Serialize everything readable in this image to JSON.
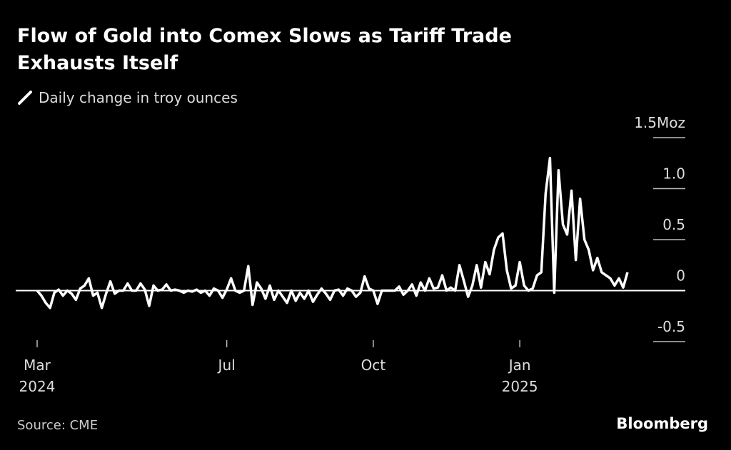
{
  "chart_data": {
    "type": "line",
    "title": "Flow of Gold into Comex Slows as Tariff Trade Exhausts Itself",
    "series": [
      {
        "name": "Daily change in troy ounces",
        "color": "#ffffff",
        "values": [
          0,
          -0.05,
          -0.12,
          -0.17,
          -0.02,
          0.01,
          -0.05,
          0,
          -0.03,
          -0.09,
          0.02,
          0.05,
          0.12,
          -0.05,
          -0.02,
          -0.17,
          -0.03,
          0.09,
          -0.03,
          0,
          0,
          0.07,
          0,
          0,
          0.07,
          0.01,
          -0.15,
          0.05,
          0,
          0.01,
          0.06,
          0,
          0.01,
          0,
          -0.02,
          0,
          -0.01,
          0.01,
          -0.02,
          0,
          -0.05,
          0.02,
          0,
          -0.07,
          0.01,
          0.12,
          0,
          -0.02,
          0,
          0.24,
          -0.14,
          0.08,
          0.02,
          -0.08,
          0.05,
          -0.09,
          0,
          -0.06,
          -0.12,
          0,
          -0.1,
          -0.02,
          -0.08,
          0,
          -0.11,
          -0.04,
          0.02,
          -0.03,
          -0.09,
          0,
          0.01,
          -0.05,
          0.02,
          0,
          -0.06,
          -0.02,
          0.14,
          0.02,
          0,
          -0.13,
          0,
          0,
          0,
          0,
          0.04,
          -0.04,
          0,
          0.06,
          -0.05,
          0.08,
          0,
          0.12,
          0.02,
          0.03,
          0.15,
          0,
          0.03,
          0,
          0.25,
          0.1,
          -0.06,
          0.05,
          0.25,
          0.03,
          0.28,
          0.16,
          0.4,
          0.52,
          0.56,
          0.2,
          0.02,
          0.05,
          0.28,
          0.05,
          0,
          0.02,
          0.15,
          0.18,
          0.95,
          1.3,
          -0.02,
          1.18,
          0.65,
          0.55,
          0.98,
          0.3,
          0.9,
          0.5,
          0.4,
          0.2,
          0.32,
          0.18,
          0.15,
          0.12,
          0.05,
          0.12,
          0.03,
          0.18
        ]
      }
    ],
    "xticks": [
      {
        "value": 0,
        "label": "Mar"
      },
      {
        "value": 44,
        "label": "Jul"
      },
      {
        "value": 78,
        "label": "Oct"
      },
      {
        "value": 112,
        "label": "Jan"
      }
    ],
    "xtick_years": [
      {
        "value": 0,
        "label": "2024"
      },
      {
        "value": 112,
        "label": "2025"
      }
    ],
    "xlim": [
      0,
      136
    ],
    "ylim": [
      -0.5,
      1.5
    ],
    "yticks": [
      -0.5,
      0,
      0.5,
      {
        "value": 1,
        "label": "1.0"
      },
      {
        "value": 1.5,
        "label": "1.5Moz"
      }
    ],
    "source": "Source: CME",
    "brand": "Bloomberg"
  }
}
